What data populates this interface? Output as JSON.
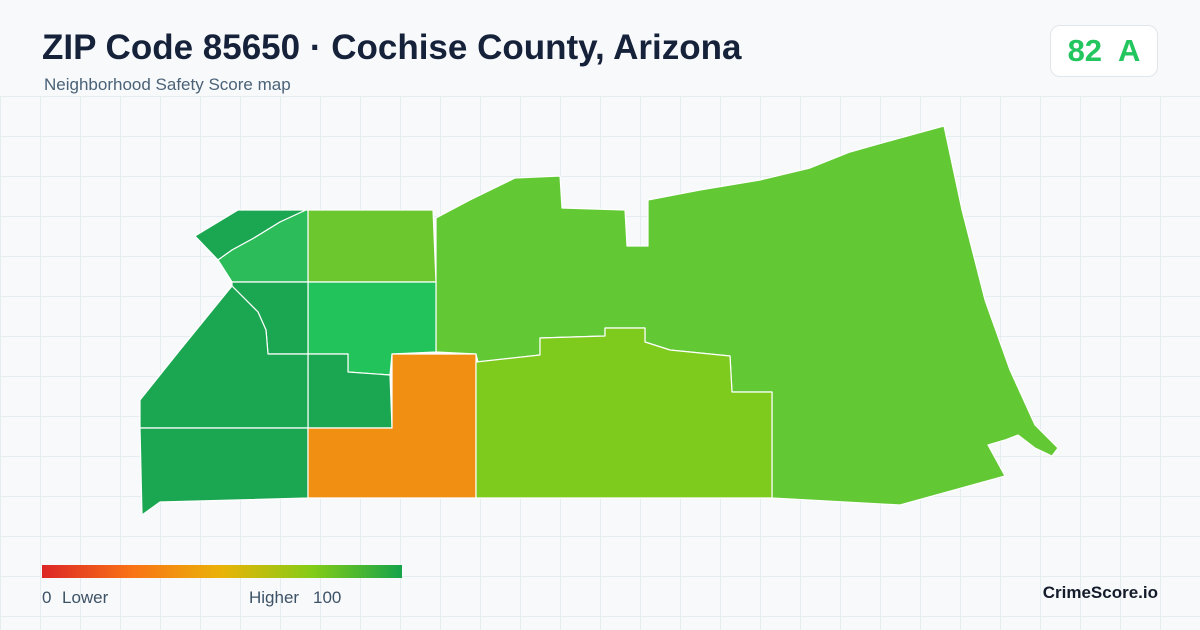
{
  "header": {
    "title": "ZIP Code 85650 · Cochise County, Arizona",
    "subtitle": "Neighborhood Safety Score map"
  },
  "score": {
    "value": "82",
    "grade": "A",
    "color": "#22c55e"
  },
  "map": {
    "regions": [
      {
        "id": "far-nw",
        "color": "#1ba752"
      },
      {
        "id": "nw-strip",
        "color": "#2cbd5a"
      },
      {
        "id": "north-center-a",
        "color": "#6cc62e"
      },
      {
        "id": "west-mid",
        "color": "#1ba752"
      },
      {
        "id": "center-north-b",
        "color": "#22c35a"
      },
      {
        "id": "east-main",
        "color": "#62c934"
      },
      {
        "id": "west-upper",
        "color": "#1ba752"
      },
      {
        "id": "center-west",
        "color": "#1ba752"
      },
      {
        "id": "south-west",
        "color": "#1ba752"
      },
      {
        "id": "south-center",
        "color": "#f18f12"
      },
      {
        "id": "south-east-center",
        "color": "#7ecb1d"
      }
    ]
  },
  "legend": {
    "min_label": "0",
    "low_label": "Lower",
    "high_label": "Higher",
    "max_label": "100",
    "gradient": [
      "#dc2626",
      "#f97316",
      "#eab308",
      "#84cc16",
      "#16a34a"
    ]
  },
  "brand": "CrimeScore.io"
}
